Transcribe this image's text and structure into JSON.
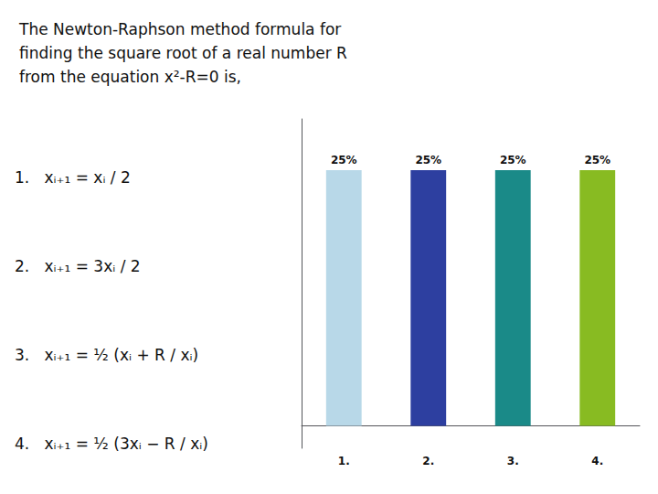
{
  "chart_data": {
    "type": "bar",
    "title": "The Newton-Raphson method formula for\nfinding the square root of a real number R\nfrom the equation x²-R=0 is,",
    "categories": [
      "1.",
      "2.",
      "3.",
      "4."
    ],
    "values": [
      25,
      25,
      25,
      25
    ],
    "value_labels": [
      "25%",
      "25%",
      "25%",
      "25%"
    ],
    "colors": [
      "#b8d8e8",
      "#2d3fa0",
      "#1a8a88",
      "#88bb22"
    ],
    "data_labels": true,
    "ylim": [
      -2.2,
      30
    ],
    "tick_labels": "x",
    "grid": false,
    "annotations": [
      "1.   xᵢ₊₁ = xᵢ / 2",
      "2.   xᵢ₊₁ = 3xᵢ / 2",
      "3.   xᵢ₊₁ = ½ (xᵢ + R / xᵢ)",
      "4.   xᵢ₊₁ = ½ (3xᵢ − R / xᵢ)"
    ]
  }
}
